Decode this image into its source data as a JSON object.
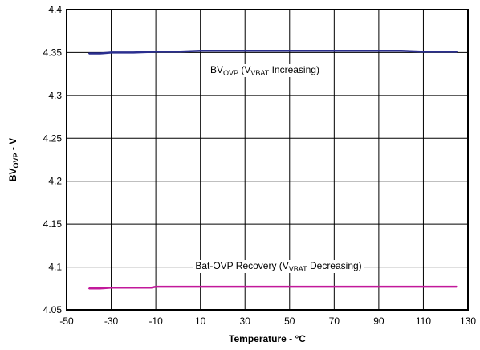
{
  "chart_data": {
    "type": "line",
    "title": "",
    "xlabel": "Temperature - °C",
    "ylabel": {
      "prefix": "BV",
      "sub": "OVP",
      "suffix": " - V"
    },
    "xlim": [
      -50,
      130
    ],
    "ylim": [
      4.05,
      4.4
    ],
    "x_ticks": [
      -50,
      -30,
      -10,
      10,
      30,
      50,
      70,
      90,
      110,
      130
    ],
    "y_ticks": [
      4.05,
      4.1,
      4.15,
      4.2,
      4.25,
      4.3,
      4.35,
      4.4
    ],
    "x_tick_labels": [
      "-50",
      "-30",
      "-10",
      "10",
      "30",
      "50",
      "70",
      "90",
      "110",
      "130"
    ],
    "y_tick_labels": [
      "4.05",
      "4.1",
      "4.15",
      "4.2",
      "4.25",
      "4.3",
      "4.35",
      "4.4"
    ],
    "grid": true,
    "legend": "none",
    "series": [
      {
        "label": {
          "parts": [
            {
              "t": "BV"
            },
            {
              "t": "OVP",
              "sub": true
            },
            {
              "t": " (V"
            },
            {
              "t": "VBAT",
              "sub": true
            },
            {
              "t": " Increasing)"
            }
          ]
        },
        "color": "#2b2f8f",
        "x": [
          -40,
          -35,
          -30,
          -20,
          -10,
          0,
          10,
          25,
          50,
          75,
          100,
          110,
          125
        ],
        "y": [
          4.349,
          4.349,
          4.35,
          4.35,
          4.351,
          4.351,
          4.352,
          4.352,
          4.352,
          4.352,
          4.352,
          4.351,
          4.351
        ]
      },
      {
        "label": {
          "parts": [
            {
              "t": "Bat-OVP Recovery (V"
            },
            {
              "t": "VBAT",
              "sub": true
            },
            {
              "t": " Decreasing)"
            }
          ]
        },
        "color": "#c2199b",
        "x": [
          -40,
          -35,
          -30,
          -20,
          -12,
          -10,
          0,
          25,
          50,
          75,
          100,
          125
        ],
        "y": [
          4.075,
          4.075,
          4.076,
          4.076,
          4.076,
          4.077,
          4.077,
          4.077,
          4.077,
          4.077,
          4.077,
          4.077
        ]
      }
    ]
  }
}
